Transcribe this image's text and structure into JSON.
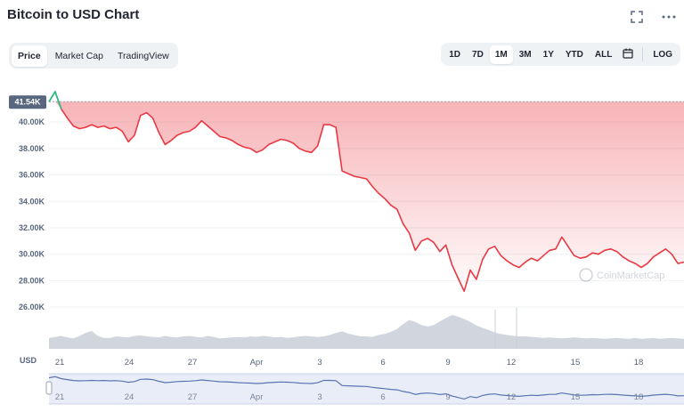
{
  "header": {
    "title": "Bitcoin to USD Chart",
    "fullscreen_icon": "expand-icon",
    "more_icon": "more-horizontal-icon"
  },
  "view_tabs": [
    {
      "label": "Price",
      "active": true
    },
    {
      "label": "Market Cap",
      "active": false
    },
    {
      "label": "TradingView",
      "active": false
    }
  ],
  "range_tabs": [
    {
      "label": "1D",
      "active": false
    },
    {
      "label": "7D",
      "active": false
    },
    {
      "label": "1M",
      "active": true
    },
    {
      "label": "3M",
      "active": false
    },
    {
      "label": "1Y",
      "active": false
    },
    {
      "label": "YTD",
      "active": false
    },
    {
      "label": "ALL",
      "active": false
    }
  ],
  "calendar_icon": "calendar-icon",
  "log_label": "LOG",
  "currency_label": "USD",
  "current_price_label": "41.54K",
  "watermark": "CoinMarketCap",
  "colors": {
    "down": "#ea3943",
    "up": "#16c784",
    "volume": "#c9cfd8",
    "navigator": "#5b74b0"
  },
  "chart_data": {
    "type": "line",
    "title": "Bitcoin to USD Chart",
    "ylabel": "",
    "xlabel": "",
    "ylim": [
      25000,
      42500
    ],
    "yticks": [
      "26.00K",
      "28.00K",
      "30.00K",
      "32.00K",
      "34.00K",
      "36.00K",
      "38.00K",
      "40.00K"
    ],
    "ytick_values": [
      26000,
      28000,
      30000,
      32000,
      34000,
      36000,
      38000,
      40000
    ],
    "xticks": [
      "21",
      "24",
      "27",
      "Apr",
      "3",
      "6",
      "9",
      "12",
      "15",
      "18"
    ],
    "reference_price": 41540,
    "grid": true,
    "series": [
      {
        "values": [
          41540,
          42300,
          41000,
          40300,
          39700,
          39500,
          39600,
          39800,
          39600,
          39700,
          39500,
          39600,
          39300,
          38500,
          39000,
          40500,
          40700,
          40300,
          39200,
          38300,
          38600,
          39000,
          39200,
          39300,
          39600,
          40100,
          39700,
          39300,
          38900,
          38800,
          38600,
          38300,
          38100,
          38000,
          37700,
          37900,
          38300,
          38500,
          38700,
          38600,
          38400,
          38000,
          37800,
          37700,
          38200,
          39800,
          39800,
          39600,
          36300,
          36100,
          35900,
          35800,
          35700,
          35100,
          34600,
          34200,
          33700,
          33400,
          32300,
          31600,
          30300,
          31000,
          31200,
          30900,
          30200,
          30700,
          29200,
          28200,
          27200,
          28800,
          28100,
          29600,
          30400,
          30600,
          29900,
          29500,
          29200,
          29000,
          29400,
          29700,
          29500,
          29900,
          30300,
          30400,
          31300,
          30600,
          29900,
          29700,
          29800,
          30100,
          30000,
          30300,
          30400,
          30200,
          29800,
          29500,
          29300,
          29000,
          29300,
          29800,
          30100,
          30400,
          30000,
          29300,
          29400
        ]
      }
    ],
    "volume_series": {
      "values": [
        2.2,
        2.4,
        2.6,
        2.3,
        2.1,
        2.6,
        3.2,
        3.6,
        2.6,
        2.2,
        2.2,
        2.5,
        2.4,
        2.3,
        2.6,
        2.7,
        2.5,
        2.4,
        2.3,
        2.6,
        2.4,
        2.3,
        2.5,
        2.6,
        2.4,
        2.3,
        2.6,
        2.4,
        2.1,
        2.2,
        2.3,
        2.4,
        2.3,
        2.5,
        2.4,
        2.6,
        2.5,
        2.3,
        2.4,
        2.2,
        2.3,
        2.5,
        2.6,
        2.5,
        2.4,
        2.5,
        2.8,
        3.2,
        3.5,
        3.1,
        2.8,
        2.5,
        2.5,
        2.4,
        2.8,
        3.0,
        3.4,
        4.0,
        5.0,
        5.8,
        5.4,
        4.8,
        4.5,
        4.8,
        5.5,
        6.2,
        6.8,
        6.5,
        6.0,
        5.4,
        4.7,
        4.2,
        3.8,
        3.3,
        3.0,
        2.8,
        2.6,
        2.5,
        2.5,
        2.4,
        2.3,
        2.2,
        2.3,
        2.2,
        2.1,
        2.2,
        2.3,
        2.2,
        2.1,
        2.2,
        2.1,
        2.0,
        2.1,
        2.2,
        2.1,
        2.0,
        2.2,
        2.0,
        2.1,
        2.2,
        2.0,
        2.1,
        2.2,
        2.1,
        2.0
      ]
    }
  }
}
